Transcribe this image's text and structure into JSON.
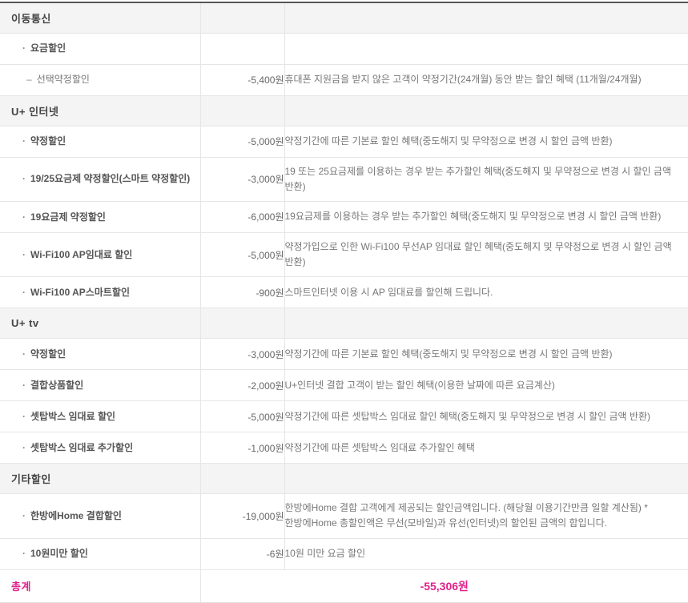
{
  "table": {
    "colors": {
      "accent_magenta": "#e0218a",
      "section_bg": "#f4f4f4",
      "top_border": "#575757",
      "row_border": "#e6e6e6"
    },
    "rows": [
      {
        "type": "section",
        "label": "이동통신",
        "amount": "",
        "desc": ""
      },
      {
        "type": "item",
        "label": "요금할인",
        "amount": "",
        "desc": ""
      },
      {
        "type": "subitem",
        "label": "선택약정할인",
        "amount": "-5,400원",
        "desc": "휴대폰 지원금을 받지 않은 고객이 약정기간(24개월) 동안 받는 할인 혜택 (11개월/24개월)"
      },
      {
        "type": "section",
        "label": "U+ 인터넷",
        "amount": "",
        "desc": ""
      },
      {
        "type": "item",
        "label": "약정할인",
        "amount": "-5,000원",
        "desc": "약정기간에 따른 기본료 할인 혜택(중도해지 및 무약정으로 변경 시 할인 금액 반환)"
      },
      {
        "type": "item",
        "label": "19/25요금제 약정할인(스마트 약정할인)",
        "amount": "-3,000원",
        "desc": "19 또는 25요금제를 이용하는 경우 받는 추가할인 혜택(중도해지 및 무약정으로 변경 시 할인 금액 반환)"
      },
      {
        "type": "item",
        "label": "19요금제 약정할인",
        "amount": "-6,000원",
        "desc": "19요금제를 이용하는 경우 받는 추가할인 혜택(중도해지 및 무약정으로 변경 시 할인 금액 반환)"
      },
      {
        "type": "item",
        "label": "Wi-Fi100 AP임대료 할인",
        "amount": "-5,000원",
        "desc": "약정가입으로 인한 Wi-Fi100 무선AP 임대료 할인 혜택(중도해지 및 무약정으로 변경 시 할인 금액 반환)"
      },
      {
        "type": "item",
        "label": "Wi-Fi100 AP스마트할인",
        "amount": "-900원",
        "desc": "스마트인터넷 이용 시 AP 임대료를 할인해 드립니다."
      },
      {
        "type": "section",
        "label": "U+ tv",
        "amount": "",
        "desc": ""
      },
      {
        "type": "item",
        "label": "약정할인",
        "amount": "-3,000원",
        "desc": "약정기간에 따른 기본료 할인 혜택(중도해지 및 무약정으로 변경 시 할인 금액 반환)"
      },
      {
        "type": "item",
        "label": "결합상품할인",
        "amount": "-2,000원",
        "desc": "U+인터넷 결합 고객이 받는 할인 혜택(이용한 날짜에 따른 요금계산)"
      },
      {
        "type": "item",
        "label": "셋탑박스 임대료 할인",
        "amount": "-5,000원",
        "desc": "약정기간에 따른 셋탑박스 임대료 할인 혜택(중도해지 및 무약정으로 변경 시 할인 금액 반환)"
      },
      {
        "type": "item",
        "label": "셋탑박스 임대료 추가할인",
        "amount": "-1,000원",
        "desc": "약정기간에 따른 셋탑박스 임대료 추가할인 혜택"
      },
      {
        "type": "section",
        "label": "기타할인",
        "amount": "",
        "desc": ""
      },
      {
        "type": "item",
        "label": "한방에Home 결합할인",
        "amount": "-19,000원",
        "desc": "한방에Home 결합 고객에게 제공되는 할인금액입니다. (해당월 이용기간만큼 일할 계산됨) * 한방에Home 총할인액은 무선(모바일)과 유선(인터넷)의 할인된 금액의 합입니다."
      },
      {
        "type": "item",
        "label": "10원미만 할인",
        "amount": "-6원",
        "desc": "10원 미만 요금 할인"
      }
    ],
    "total": {
      "label": "총계",
      "amount": "-55,306원"
    }
  }
}
